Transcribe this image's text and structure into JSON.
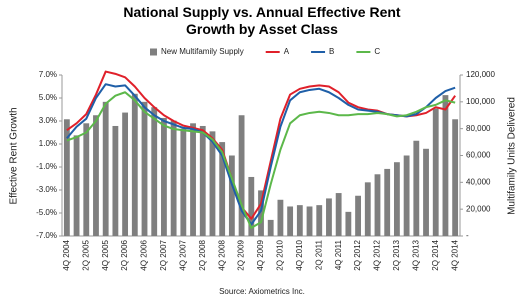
{
  "chart_data": {
    "type": "combo",
    "title": "National Supply vs. Annual Effective Rent Growth by Asset Class",
    "y_label": "Effective Rent Growth",
    "y2_label": "Multifamily Units Delivered",
    "source": "Source: Axiometrics Inc.",
    "categories": [
      "4Q 2004",
      null,
      "2Q 2005",
      null,
      "4Q 2005",
      null,
      "2Q 2006",
      null,
      "4Q 2006",
      null,
      "2Q 2007",
      null,
      "4Q 2007",
      null,
      "2Q 2008",
      null,
      "4Q 2008",
      null,
      "2Q 2009",
      null,
      "4Q 2009",
      null,
      "2Q 2010",
      null,
      "4Q 2010",
      null,
      "2Q 2011",
      null,
      "4Q 2011",
      null,
      "2Q 2012",
      null,
      "4Q 2012",
      null,
      "2Q 2013",
      null,
      "4Q 2013",
      null,
      "2Q 2014",
      null,
      "4Q 2014"
    ],
    "ylim": [
      -7,
      7
    ],
    "yticks": [
      {
        "value": -7,
        "label": "-7.0%"
      },
      {
        "value": -5,
        "label": "-5.0%"
      },
      {
        "value": -3,
        "label": "-3.0%"
      },
      {
        "value": -1,
        "label": "-1.0%"
      },
      {
        "value": 1,
        "label": "1.0%"
      },
      {
        "value": 3,
        "label": "3.0%"
      },
      {
        "value": 5,
        "label": "5.0%"
      },
      {
        "value": 7,
        "label": "7.0%"
      }
    ],
    "y2lim": [
      0,
      120000
    ],
    "y2ticks": [
      {
        "value": 0,
        "label": "-"
      },
      {
        "value": 20000,
        "label": "20,000"
      },
      {
        "value": 40000,
        "label": "40,000"
      },
      {
        "value": 60000,
        "label": "60,000"
      },
      {
        "value": 80000,
        "label": "80,000"
      },
      {
        "value": 100000,
        "label": "100,000"
      },
      {
        "value": 120000,
        "label": "120,000"
      }
    ],
    "legend": "top",
    "series": [
      {
        "name": "New Multifamily Supply",
        "type": "bar",
        "axis": "y2",
        "color": "#7f7f7f",
        "values": [
          87000,
          75000,
          84000,
          90000,
          100000,
          82000,
          92000,
          106000,
          100000,
          96000,
          88000,
          86000,
          80000,
          84000,
          82000,
          78000,
          70000,
          60000,
          90000,
          44000,
          34000,
          12000,
          27000,
          22000,
          23000,
          22000,
          23000,
          28000,
          32000,
          18000,
          30000,
          40000,
          46000,
          50000,
          55000,
          60000,
          71000,
          65000,
          95000,
          105000,
          87000
        ]
      },
      {
        "name": "A",
        "type": "line",
        "color": "#e0202a",
        "values": [
          2.2,
          2.8,
          3.6,
          5.3,
          7.3,
          7.1,
          6.8,
          6.0,
          5.0,
          4.2,
          3.5,
          3.0,
          2.6,
          2.4,
          2.2,
          1.5,
          0.5,
          -2.0,
          -4.5,
          -5.5,
          -4.2,
          -0.5,
          3.2,
          5.3,
          5.8,
          6.0,
          6.1,
          6.0,
          5.5,
          4.6,
          4.2,
          4.0,
          3.9,
          3.6,
          3.5,
          3.4,
          3.5,
          3.7,
          4.2,
          4.0,
          5.2
        ]
      },
      {
        "name": "B",
        "type": "line",
        "color": "#1f5fa8",
        "values": [
          1.5,
          2.5,
          3.2,
          5.0,
          6.2,
          6.0,
          6.1,
          5.2,
          4.2,
          3.5,
          3.0,
          2.7,
          2.4,
          2.3,
          2.0,
          1.2,
          0.0,
          -2.5,
          -4.8,
          -6.0,
          -4.8,
          -1.0,
          2.5,
          4.8,
          5.5,
          5.7,
          5.8,
          5.5,
          5.0,
          4.4,
          4.0,
          3.9,
          3.8,
          3.6,
          3.5,
          3.4,
          3.6,
          4.2,
          5.0,
          5.6,
          5.9
        ]
      },
      {
        "name": "C",
        "type": "line",
        "color": "#5cb84a",
        "values": [
          1.3,
          1.6,
          2.0,
          3.0,
          4.5,
          5.2,
          5.5,
          4.8,
          3.8,
          3.2,
          2.6,
          2.3,
          2.2,
          2.1,
          2.0,
          1.4,
          0.3,
          -2.0,
          -4.3,
          -6.3,
          -5.8,
          -2.5,
          0.5,
          2.8,
          3.5,
          3.7,
          3.8,
          3.7,
          3.5,
          3.5,
          3.6,
          3.6,
          3.7,
          3.6,
          3.4,
          3.5,
          3.8,
          4.2,
          4.4,
          4.8,
          4.6
        ]
      }
    ]
  }
}
